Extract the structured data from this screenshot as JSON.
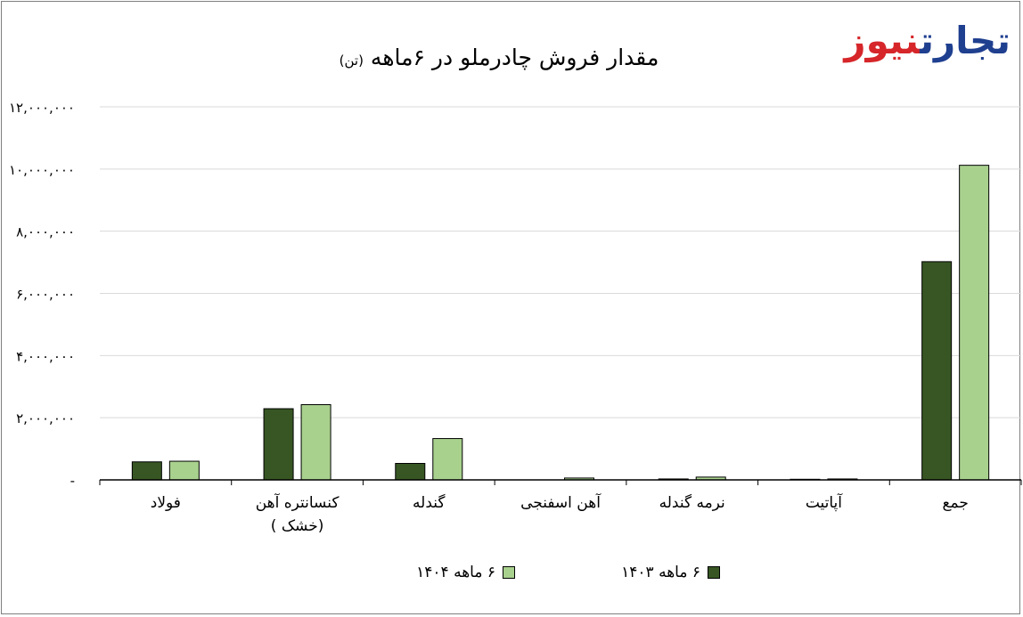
{
  "title": {
    "main": "مقدار فروش چادرملو در ۶ماهه",
    "unit": "(تن)"
  },
  "logo": {
    "part1": "تجارت",
    "part2": "نیوز"
  },
  "colors": {
    "series1": "#375623",
    "series2": "#a9d18e",
    "axis": "#000000",
    "grid": "#d9d9d9"
  },
  "legend": [
    {
      "label": "۶ ماهه ۱۴۰۳",
      "color": "#375623"
    },
    {
      "label": "۶ ماهه ۱۴۰۴",
      "color": "#a9d18e"
    }
  ],
  "chart_data": {
    "type": "bar",
    "title": "مقدار فروش چادرملو در ۶ماهه (تن)",
    "categories": [
      "فولاد",
      "کنسانتره آهن (خشک )",
      "گندله",
      "آهن اسفنجی",
      "نرمه گندله",
      "آپاتیت",
      "جمع"
    ],
    "category_lines": [
      [
        "فولاد"
      ],
      [
        "کنسانتره آهن",
        "(خشک )"
      ],
      [
        "گندله"
      ],
      [
        "آهن اسفنجی"
      ],
      [
        "نرمه گندله"
      ],
      [
        "آپاتیت"
      ],
      [
        "جمع"
      ]
    ],
    "series": [
      {
        "name": "۶ ماهه ۱۴۰۳",
        "values": [
          580000,
          2290000,
          530000,
          0,
          30000,
          20000,
          7020000
        ]
      },
      {
        "name": "۶ ماهه ۱۴۰۴",
        "values": [
          600000,
          2420000,
          1330000,
          60000,
          90000,
          30000,
          10120000
        ]
      }
    ],
    "ylim": [
      0,
      12000000
    ],
    "yticks": [
      0,
      2000000,
      4000000,
      6000000,
      8000000,
      10000000,
      12000000
    ],
    "ytick_labels": [
      "-",
      "۲,۰۰۰,۰۰۰",
      "۴,۰۰۰,۰۰۰",
      "۶,۰۰۰,۰۰۰",
      "۸,۰۰۰,۰۰۰",
      "۱۰,۰۰۰,۰۰۰",
      "۱۲,۰۰۰,۰۰۰"
    ],
    "grid": true,
    "legend_position": "bottom"
  }
}
